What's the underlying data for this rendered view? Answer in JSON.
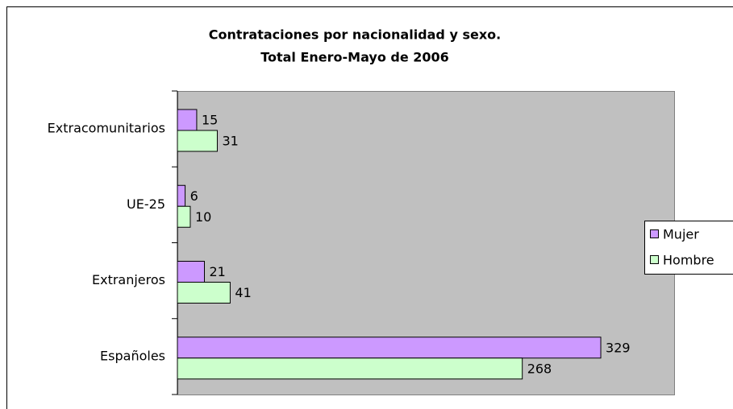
{
  "chart_data": {
    "type": "bar",
    "orientation": "horizontal",
    "title": [
      "Contrataciones por nacionalidad y sexo.",
      "Total Enero-Mayo de 2006"
    ],
    "categories": [
      "Extracomunitarios",
      "UE-25",
      "Extranjeros",
      "Españoles"
    ],
    "series": [
      {
        "name": "Mujer",
        "color": "#cc99ff",
        "values": [
          15,
          6,
          21,
          329
        ]
      },
      {
        "name": "Hombre",
        "color": "#ccffcc",
        "values": [
          31,
          10,
          41,
          268
        ]
      }
    ],
    "xlim": [
      0,
      386
    ],
    "legend": "right",
    "plot_background": "#c0c0c0"
  }
}
